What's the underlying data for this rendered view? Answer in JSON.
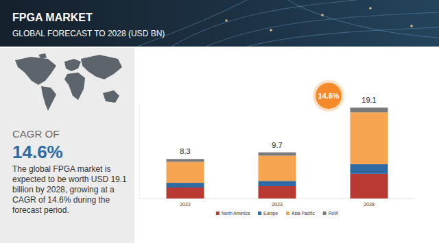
{
  "chart_data": {
    "type": "bar",
    "stacked": true,
    "title": "FPGA MARKET",
    "subtitle": "GLOBAL FORECAST TO 2028 (USD BN)",
    "categories": [
      "2022",
      "2023",
      "2028"
    ],
    "series": [
      {
        "name": "North America",
        "color": "#b83a32",
        "values": [
          2.3,
          2.6,
          5.2
        ]
      },
      {
        "name": "Europe",
        "color": "#2f6aa3",
        "values": [
          1.0,
          1.1,
          2.0
        ]
      },
      {
        "name": "Asia Pacific",
        "color": "#f7a451",
        "values": [
          4.4,
          5.3,
          10.9
        ]
      },
      {
        "name": "RoW",
        "color": "#7a7a7a",
        "values": [
          0.6,
          0.7,
          1.0
        ]
      }
    ],
    "totals": [
      8.3,
      9.7,
      19.1
    ],
    "annotation": "14.6%",
    "side_panel": {
      "label": "CAGR OF",
      "value": "14.6%",
      "text": "The global FPGA market is expected to be worth USD 19.1 billion by 2028, growing at a CAGR of 14.6% during the forecast period."
    },
    "ylim": [
      0,
      20
    ],
    "yticks": [
      0
    ],
    "tick_labels": "x",
    "legend": "bottom",
    "grid": false
  }
}
